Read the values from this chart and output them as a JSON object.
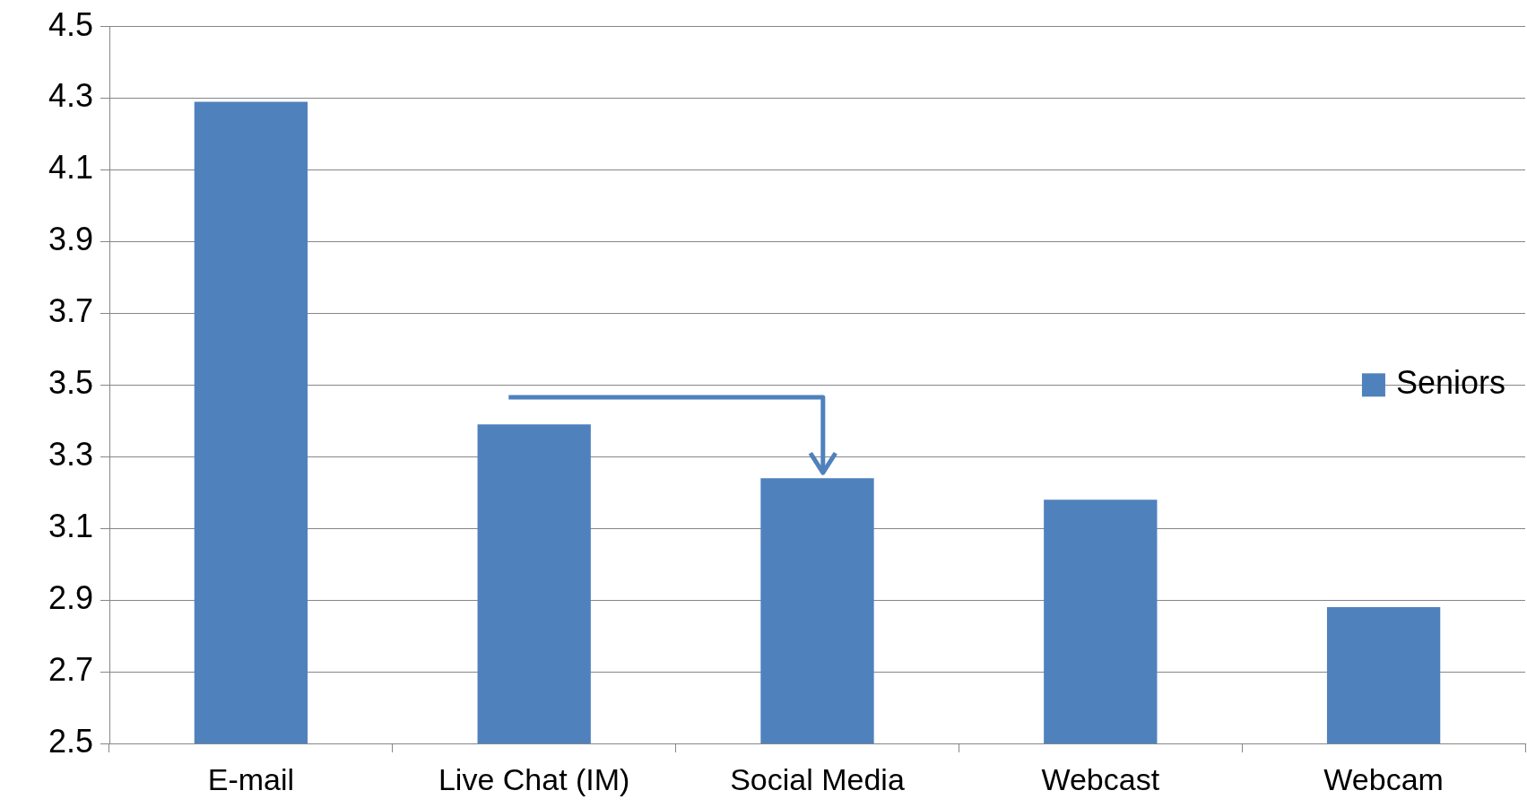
{
  "chart_data": {
    "type": "bar",
    "categories": [
      "E-mail",
      "Live Chat (IM)",
      "Social Media",
      "Webcast",
      "Webcam"
    ],
    "series": [
      {
        "name": "Seniors",
        "color": "#4f81bd",
        "values": [
          4.29,
          3.39,
          3.24,
          3.18,
          2.88
        ]
      }
    ],
    "ylim": [
      2.5,
      4.5
    ],
    "yticks": [
      2.5,
      2.7,
      2.9,
      3.1,
      3.3,
      3.5,
      3.7,
      3.9,
      4.1,
      4.3,
      4.5
    ],
    "grid": "y",
    "legend": "right"
  }
}
